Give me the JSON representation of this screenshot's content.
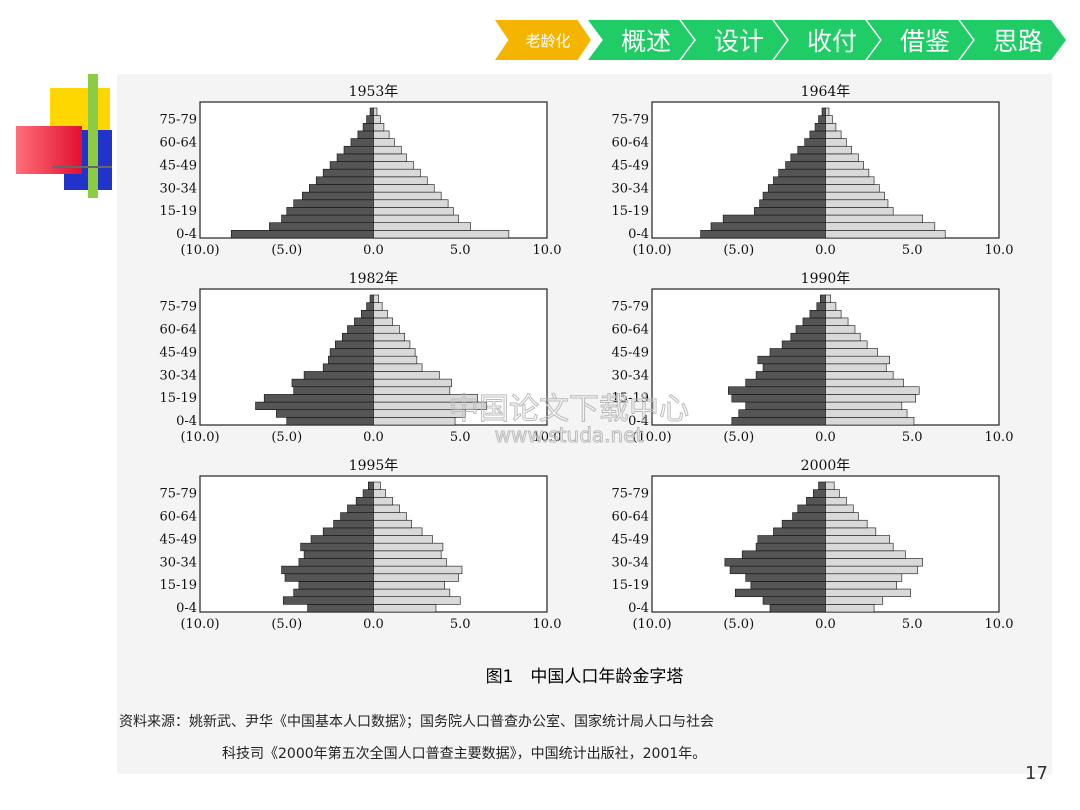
{
  "nav": {
    "items": [
      {
        "label": "老龄化",
        "active": true
      },
      {
        "label": "概述",
        "active": false
      },
      {
        "label": "设计",
        "active": false
      },
      {
        "label": "收付",
        "active": false
      },
      {
        "label": "借鉴",
        "active": false
      },
      {
        "label": "思路",
        "active": false
      }
    ],
    "colors": {
      "active": "#f5b400",
      "inactive": "#1fcc66"
    }
  },
  "figure": {
    "caption": "图1　中国人口年龄金字塔",
    "source_line1": "资料来源：姚新武、尹华《中国基本人口数据》；国务院人口普查办公室、国家统计局人口与社会",
    "source_line2": "科技司《2000年第五次全国人口普查主要数据》，中国统计出版社，2001年。",
    "watermark_line1": "中国论文下载中心",
    "watermark_line2": "www.studa.net"
  },
  "page_number": "17",
  "chart_data": [
    {
      "type": "bar",
      "title": "1953年",
      "categories": [
        "0-4",
        "5-9",
        "10-14",
        "15-19",
        "20-24",
        "25-29",
        "30-34",
        "35-39",
        "40-44",
        "45-49",
        "50-54",
        "55-59",
        "60-64",
        "65-69",
        "70-74",
        "75-79",
        "80+"
      ],
      "ytick_labels": [
        "75-79",
        "60-64",
        "45-49",
        "30-34",
        "15-19",
        "0-4"
      ],
      "xtick_labels": [
        "(10.0)",
        "(5.0)",
        "0.0",
        "5.0",
        "10.0"
      ],
      "xlim": [
        -10,
        10
      ],
      "series": [
        {
          "values": [
            8.2,
            6.0,
            5.3,
            5.0,
            4.6,
            4.1,
            3.7,
            3.3,
            2.9,
            2.5,
            2.1,
            1.7,
            1.3,
            0.9,
            0.6,
            0.4,
            0.2
          ]
        },
        {
          "values": [
            7.8,
            5.6,
            4.9,
            4.6,
            4.3,
            3.9,
            3.5,
            3.1,
            2.7,
            2.3,
            1.9,
            1.6,
            1.2,
            0.9,
            0.6,
            0.4,
            0.2
          ]
        }
      ]
    },
    {
      "type": "bar",
      "title": "1964年",
      "categories": [
        "0-4",
        "5-9",
        "10-14",
        "15-19",
        "20-24",
        "25-29",
        "30-34",
        "35-39",
        "40-44",
        "45-49",
        "50-54",
        "55-59",
        "60-64",
        "65-69",
        "70-74",
        "75-79",
        "80+"
      ],
      "ytick_labels": [
        "75-79",
        "60-64",
        "45-49",
        "30-34",
        "15-19",
        "0-4"
      ],
      "xtick_labels": [
        "(10.0)",
        "(5.0)",
        "0.0",
        "5.0",
        "10.0"
      ],
      "xlim": [
        -10,
        10
      ],
      "series": [
        {
          "values": [
            7.2,
            6.6,
            5.9,
            4.1,
            3.8,
            3.6,
            3.3,
            3.0,
            2.7,
            2.3,
            2.0,
            1.6,
            1.2,
            0.9,
            0.6,
            0.4,
            0.2
          ]
        },
        {
          "values": [
            6.9,
            6.3,
            5.6,
            3.9,
            3.6,
            3.4,
            3.1,
            2.8,
            2.5,
            2.2,
            1.9,
            1.5,
            1.2,
            0.9,
            0.6,
            0.4,
            0.2
          ]
        }
      ]
    },
    {
      "type": "bar",
      "title": "1982年",
      "categories": [
        "0-4",
        "5-9",
        "10-14",
        "15-19",
        "20-24",
        "25-29",
        "30-34",
        "35-39",
        "40-44",
        "45-49",
        "50-54",
        "55-59",
        "60-64",
        "65-69",
        "70-74",
        "75-79",
        "80+"
      ],
      "ytick_labels": [
        "75-79",
        "60-64",
        "45-49",
        "30-34",
        "15-19",
        "0-4"
      ],
      "xtick_labels": [
        "(10.0)",
        "(5.0)",
        "0.0",
        "5.0",
        "10.0"
      ],
      "xlim": [
        -10,
        10
      ],
      "series": [
        {
          "values": [
            5.0,
            5.6,
            6.8,
            6.3,
            4.6,
            4.7,
            4.0,
            2.9,
            2.6,
            2.5,
            2.2,
            1.8,
            1.5,
            1.1,
            0.7,
            0.4,
            0.2
          ]
        },
        {
          "values": [
            4.7,
            5.3,
            6.5,
            6.0,
            4.4,
            4.5,
            3.8,
            2.8,
            2.5,
            2.4,
            2.1,
            1.8,
            1.5,
            1.1,
            0.8,
            0.5,
            0.3
          ]
        }
      ]
    },
    {
      "type": "bar",
      "title": "1990年",
      "categories": [
        "0-4",
        "5-9",
        "10-14",
        "15-19",
        "20-24",
        "25-29",
        "30-34",
        "35-39",
        "40-44",
        "45-49",
        "50-54",
        "55-59",
        "60-64",
        "65-69",
        "70-74",
        "75-79",
        "80+"
      ],
      "ytick_labels": [
        "75-79",
        "60-64",
        "45-49",
        "30-34",
        "15-19",
        "0-4"
      ],
      "xtick_labels": [
        "(10.0)",
        "(5.0)",
        "0.0",
        "5.0",
        "10.0"
      ],
      "xlim": [
        -10,
        10
      ],
      "series": [
        {
          "values": [
            5.4,
            5.0,
            4.6,
            5.4,
            5.6,
            4.6,
            4.0,
            3.6,
            3.9,
            3.2,
            2.5,
            2.0,
            1.7,
            1.3,
            0.9,
            0.5,
            0.3
          ]
        },
        {
          "values": [
            5.1,
            4.7,
            4.4,
            5.2,
            5.4,
            4.5,
            3.9,
            3.5,
            3.7,
            3.0,
            2.4,
            2.0,
            1.7,
            1.3,
            0.9,
            0.6,
            0.3
          ]
        }
      ]
    },
    {
      "type": "bar",
      "title": "1995年",
      "categories": [
        "0-4",
        "5-9",
        "10-14",
        "15-19",
        "20-24",
        "25-29",
        "30-34",
        "35-39",
        "40-44",
        "45-49",
        "50-54",
        "55-59",
        "60-64",
        "65-69",
        "70-74",
        "75-79",
        "80+"
      ],
      "ytick_labels": [
        "75-79",
        "60-64",
        "45-49",
        "30-34",
        "15-19",
        "0-4"
      ],
      "xtick_labels": [
        "(10.0)",
        "(5.0)",
        "0.0",
        "5.0",
        "10.0"
      ],
      "xlim": [
        -10,
        10
      ],
      "series": [
        {
          "values": [
            3.8,
            5.2,
            4.6,
            4.3,
            5.1,
            5.3,
            4.3,
            4.0,
            4.2,
            3.6,
            2.9,
            2.3,
            1.9,
            1.5,
            1.0,
            0.6,
            0.3
          ]
        },
        {
          "values": [
            3.6,
            5.0,
            4.4,
            4.1,
            4.9,
            5.1,
            4.2,
            3.9,
            4.0,
            3.4,
            2.8,
            2.2,
            1.9,
            1.5,
            1.1,
            0.7,
            0.4
          ]
        }
      ]
    },
    {
      "type": "bar",
      "title": "2000年",
      "categories": [
        "0-4",
        "5-9",
        "10-14",
        "15-19",
        "20-24",
        "25-29",
        "30-34",
        "35-39",
        "40-44",
        "45-49",
        "50-54",
        "55-59",
        "60-64",
        "65-69",
        "70-74",
        "75-79",
        "80+"
      ],
      "ytick_labels": [
        "75-79",
        "60-64",
        "45-49",
        "30-34",
        "15-19",
        "0-4"
      ],
      "xtick_labels": [
        "(10.0)",
        "(5.0)",
        "0.0",
        "5.0",
        "10.0"
      ],
      "xlim": [
        -10,
        10
      ],
      "series": [
        {
          "values": [
            3.2,
            3.6,
            5.2,
            4.3,
            4.6,
            5.5,
            5.8,
            4.8,
            4.0,
            3.9,
            3.0,
            2.5,
            1.9,
            1.6,
            1.1,
            0.7,
            0.4
          ]
        },
        {
          "values": [
            2.8,
            3.3,
            4.9,
            4.1,
            4.4,
            5.3,
            5.6,
            4.6,
            3.9,
            3.7,
            2.9,
            2.4,
            1.9,
            1.6,
            1.2,
            0.8,
            0.5
          ]
        }
      ]
    }
  ]
}
